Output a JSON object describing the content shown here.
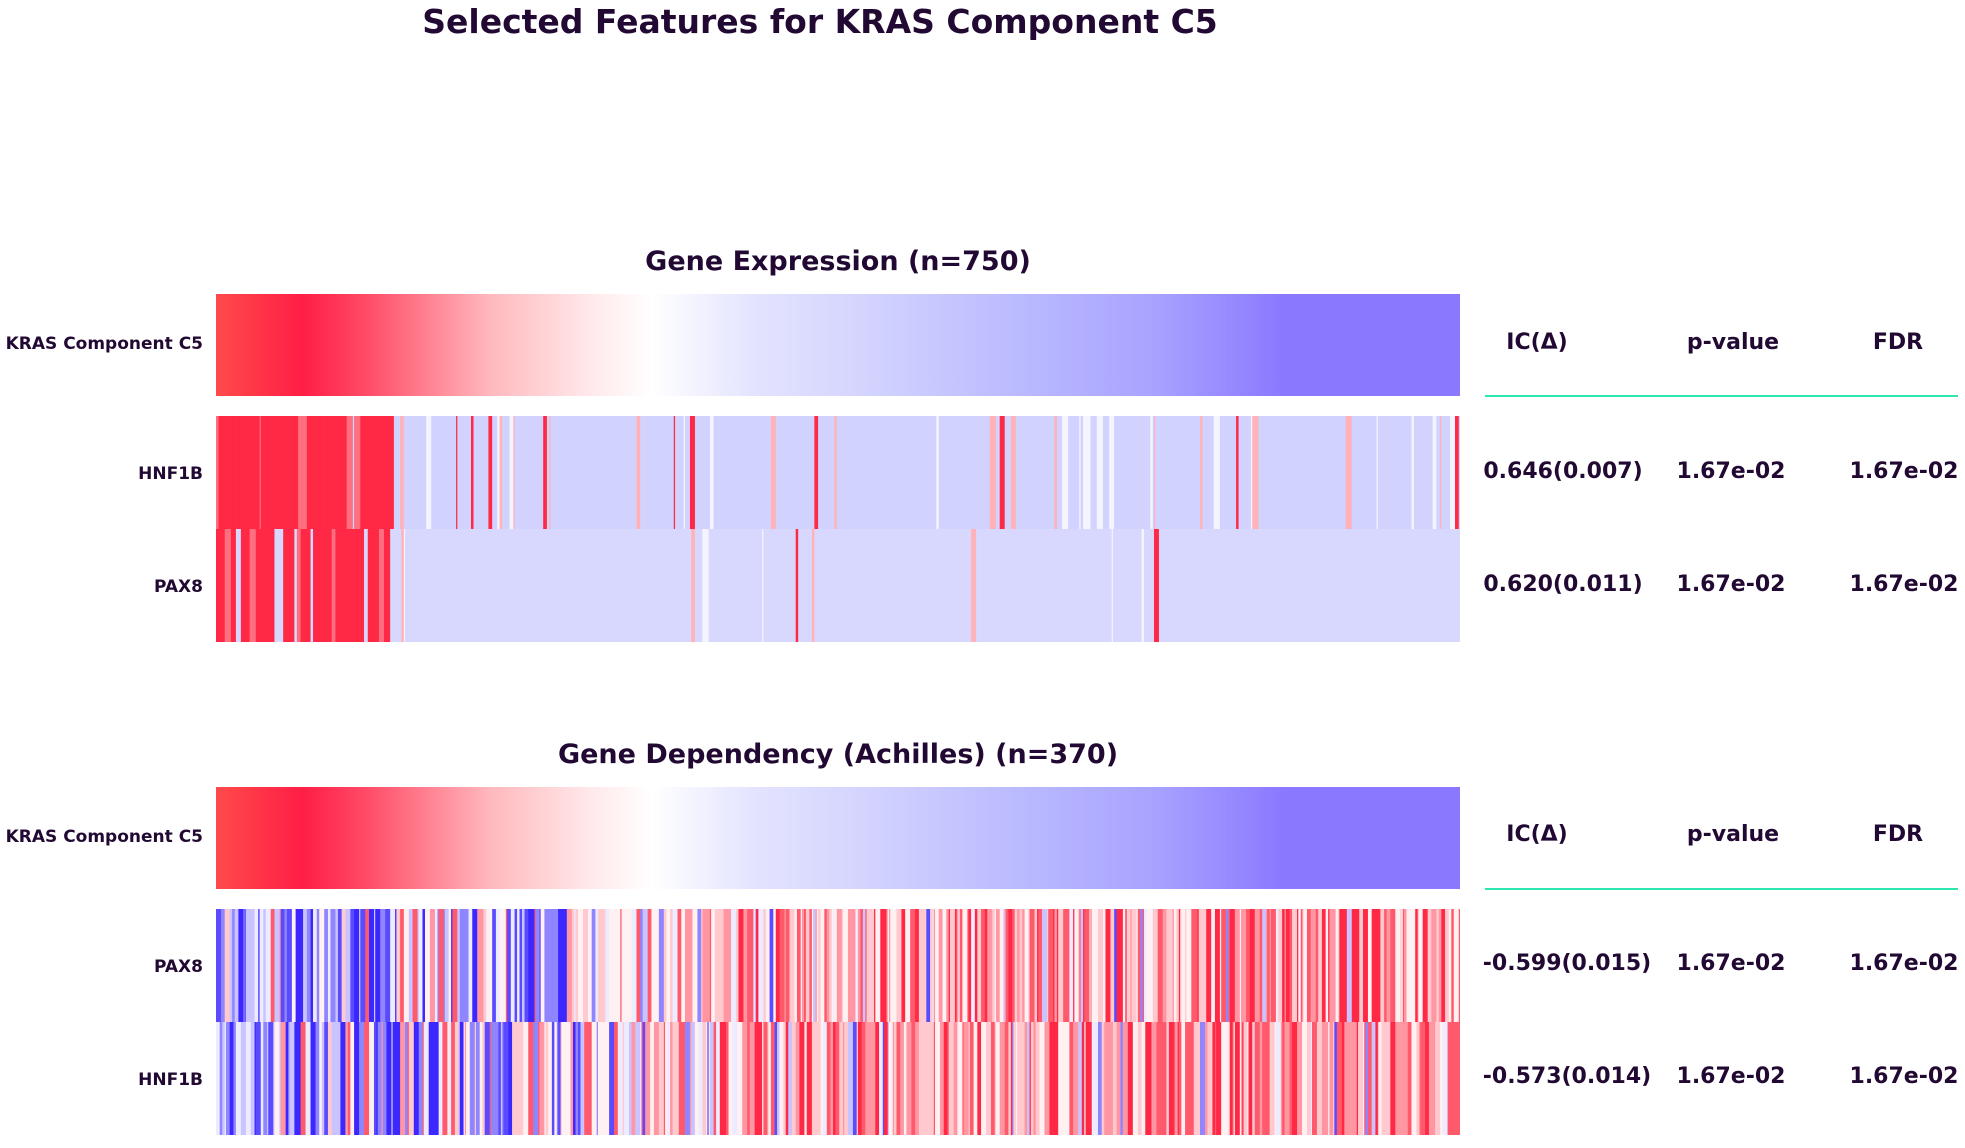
{
  "title": "Selected Features for KRAS Component C5",
  "palette": {
    "high": "#ff1e46",
    "mid": "#ffffff",
    "low": "#3c28ff",
    "target_low": "#8a78ff",
    "text": "#220933",
    "rule": "#2ee6b0"
  },
  "chart_data": [
    {
      "type": "heatmap",
      "title": "Gene Expression (n=750)",
      "target": "KRAS Component C5",
      "n": 750,
      "columns": {
        "ic": "IC(Δ)",
        "pvalue": "p-value",
        "fdr": "FDR"
      },
      "features": [
        {
          "name": "HNF1B",
          "ic": "0.646(0.007)",
          "pvalue": "1.67e-02",
          "fdr": "1.67e-02"
        },
        {
          "name": "PAX8",
          "ic": "0.620(0.011)",
          "pvalue": "1.67e-02",
          "fdr": "1.67e-02"
        }
      ]
    },
    {
      "type": "heatmap",
      "title": "Gene Dependency (Achilles) (n=370)",
      "target": "KRAS Component C5",
      "n": 370,
      "columns": {
        "ic": "IC(Δ)",
        "pvalue": "p-value",
        "fdr": "FDR"
      },
      "features": [
        {
          "name": "PAX8",
          "ic": "-0.599(0.015)",
          "pvalue": "1.67e-02",
          "fdr": "1.67e-02"
        },
        {
          "name": "HNF1B",
          "ic": "-0.573(0.014)",
          "pvalue": "1.67e-02",
          "fdr": "1.67e-02"
        }
      ]
    }
  ]
}
